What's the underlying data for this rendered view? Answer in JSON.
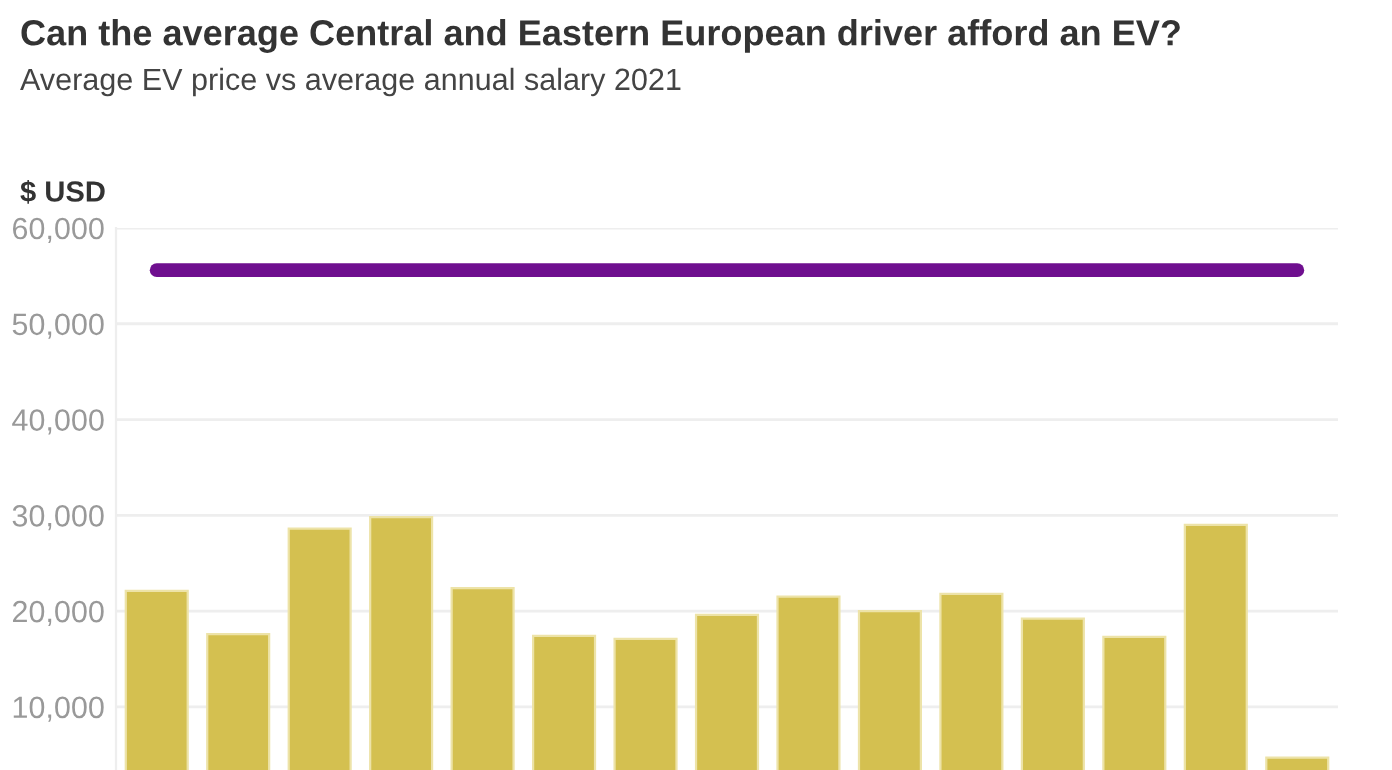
{
  "chart_data": {
    "type": "bar",
    "title": "Can the average Central and Eastern European driver afford an EV?",
    "subtitle": "Average EV price vs average annual salary 2021",
    "ylabel": "$ USD",
    "categories": [
      null,
      null,
      null,
      null,
      null,
      null,
      null,
      null,
      null,
      null,
      null,
      null,
      null,
      null,
      null
    ],
    "series": [
      {
        "color": "#d4c050",
        "values": [
          22100,
          17600,
          28600,
          29800,
          22400,
          17400,
          17100,
          19600,
          21500,
          20000,
          21800,
          19200,
          17300,
          29000,
          4700
        ]
      },
      {
        "type": "line",
        "color": "#6f0f8f",
        "values": [
          55600,
          55600,
          55600,
          55600,
          55600,
          55600,
          55600,
          55600,
          55600,
          55600,
          55600,
          55600,
          55600,
          55600,
          55600
        ]
      }
    ],
    "ylim": [
      3400,
      60000
    ],
    "yticks": [
      {
        "value": 10000,
        "label": "10,000"
      },
      {
        "value": 20000,
        "label": "20,000"
      },
      {
        "value": 30000,
        "label": "30,000"
      },
      {
        "value": 40000,
        "label": "40,000"
      },
      {
        "value": 50000,
        "label": "50,000"
      },
      {
        "value": 60000,
        "label": "60,000"
      }
    ],
    "grid": "y",
    "tick_labels": "y",
    "legend": false
  }
}
